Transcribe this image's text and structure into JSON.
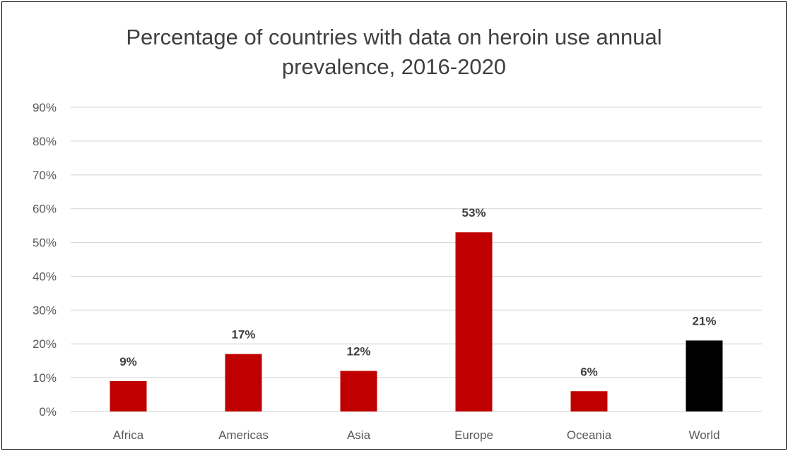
{
  "chart_data": {
    "type": "bar",
    "title_lines": [
      "Percentage of countries with data on heroin use  annual",
      "prevalence, 2016-2020"
    ],
    "xlabel": "",
    "ylabel": "",
    "categories": [
      "Africa",
      "Americas",
      "Asia",
      "Europe",
      "Oceania",
      "World"
    ],
    "values": [
      9,
      17,
      12,
      53,
      6,
      21
    ],
    "data_labels": [
      "9%",
      "17%",
      "12%",
      "53%",
      "6%",
      "21%"
    ],
    "y_ticks": [
      "0%",
      "10%",
      "20%",
      "30%",
      "40%",
      "50%",
      "60%",
      "70%",
      "80%",
      "90%"
    ],
    "ylim": [
      0,
      90
    ],
    "grid": true,
    "legend": "none",
    "colors": {
      "bar": "#c00000",
      "highlight_bar": "#000000",
      "highlight_category": "World",
      "gridline": "#d9d9d9",
      "axis_text": "#595959",
      "title_text": "#404040"
    }
  }
}
